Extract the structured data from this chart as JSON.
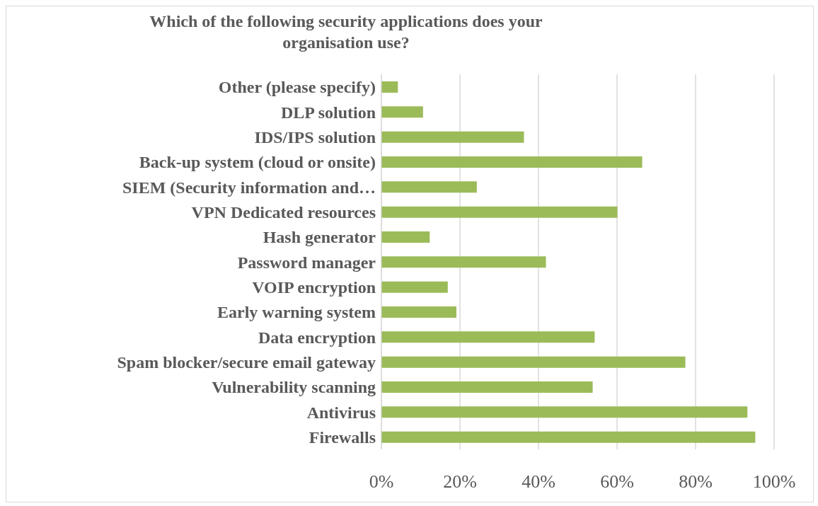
{
  "chart_data": {
    "type": "bar",
    "orientation": "horizontal",
    "title": "Which of the following security applications does your organisation use?",
    "categories": [
      "Other (please specify)",
      "DLP solution",
      "IDS/IPS solution",
      "Back-up system (cloud or onsite)",
      "SIEM (Security information and…",
      "VPN Dedicated resources",
      "Hash generator",
      "Password manager",
      "VOIP encryption",
      "Early warning system",
      "Data encryption",
      "Spam blocker/secure email gateway",
      "Vulnerability scanning",
      "Antivirus",
      "Firewalls"
    ],
    "values": [
      4.2,
      10.6,
      36.3,
      66.4,
      24.3,
      60.1,
      12.3,
      41.9,
      16.9,
      19.1,
      54.3,
      77.4,
      53.8,
      93.2,
      95.2
    ],
    "color": "#9bbb59",
    "xlim": [
      0,
      100
    ],
    "xticks": [
      {
        "value": 0,
        "label": "0%"
      },
      {
        "value": 20,
        "label": "20%"
      },
      {
        "value": 40,
        "label": "40%"
      },
      {
        "value": 60,
        "label": "60%"
      },
      {
        "value": 80,
        "label": "80%"
      },
      {
        "value": 100,
        "label": "100%"
      }
    ],
    "grid": "x"
  }
}
